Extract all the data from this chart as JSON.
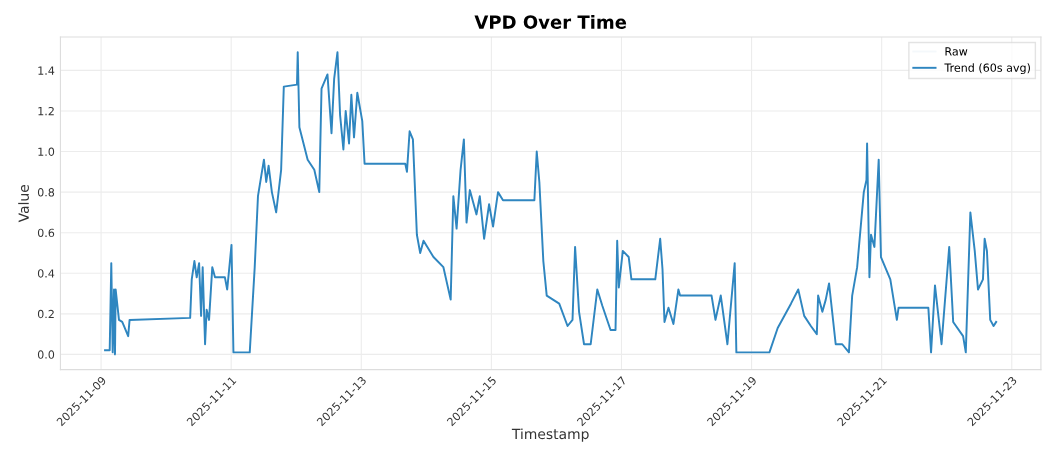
{
  "chart_data": {
    "type": "line",
    "title": "VPD Over Time",
    "xlabel": "Timestamp",
    "ylabel": "Value",
    "xlim": [
      "2025-11-08T09:00",
      "2025-11-23T10:45"
    ],
    "ylim": [
      -0.075,
      1.565
    ],
    "xticks": [
      "2025-11-09",
      "2025-11-11",
      "2025-11-13",
      "2025-11-15",
      "2025-11-17",
      "2025-11-19",
      "2025-11-21",
      "2025-11-23"
    ],
    "yticks": [
      {
        "value": 0,
        "label": "0.0"
      },
      {
        "value": 0.2,
        "label": "0.2"
      },
      {
        "value": 0.4,
        "label": "0.4"
      },
      {
        "value": 0.6,
        "label": "0.6"
      },
      {
        "value": 0.8,
        "label": "0.8"
      },
      {
        "value": 1.0,
        "label": "1.0"
      },
      {
        "value": 1.2,
        "label": "1.2"
      },
      {
        "value": 1.4,
        "label": "1.4"
      }
    ],
    "grid": true,
    "legend": "top right",
    "marker": "none",
    "line_style": "solid",
    "series": [
      {
        "name": "Raw",
        "color": "#f4f8fb"
      },
      {
        "name": "Trend (60s avg)",
        "color": "#2f86c0",
        "x": [
          "2025-11-09T01:28",
          "2025-11-09T03:11",
          "2025-11-09T03:46",
          "2025-11-09T04:17",
          "2025-11-09T04:46",
          "2025-11-09T05:08",
          "2025-11-09T05:23",
          "2025-11-09T06:36",
          "2025-11-09T07:48",
          "2025-11-09T08:26",
          "2025-11-09T10:00",
          "2025-11-09T10:31",
          "2025-11-10T08:52",
          "2025-11-10T09:27",
          "2025-11-10T10:26",
          "2025-11-10T11:17",
          "2025-11-10T12:10",
          "2025-11-10T12:54",
          "2025-11-10T13:29",
          "2025-11-10T14:22",
          "2025-11-10T14:57",
          "2025-11-10T15:50",
          "2025-11-10T17:02",
          "2025-11-10T18:02",
          "2025-11-10T21:41",
          "2025-11-10T22:32",
          "2025-11-11T00:07",
          "2025-11-11T00:50",
          "2025-11-11T06:51",
          "2025-11-11T08:41",
          "2025-11-11T09:53",
          "2025-11-11T11:06",
          "2025-11-11T12:05",
          "2025-11-11T12:56",
          "2025-11-11T13:49",
          "2025-11-11T15:01",
          "2025-11-11T16:36",
          "2025-11-11T18:26",
          "2025-11-11T19:25",
          "2025-11-12T00:17",
          "2025-11-12T00:33",
          "2025-11-12T01:10",
          "2025-11-12T04:13",
          "2025-11-12T06:40",
          "2025-11-12T08:30",
          "2025-11-12T09:20",
          "2025-11-12T11:32",
          "2025-11-12T13:01",
          "2025-11-12T14:00",
          "2025-11-12T15:13",
          "2025-11-12T16:11",
          "2025-11-12T17:24",
          "2025-11-12T18:15",
          "2025-11-12T19:29",
          "2025-11-12T20:20",
          "2025-11-12T21:19",
          "2025-11-12T22:32",
          "2025-11-13T00:22",
          "2025-11-13T01:13",
          "2025-11-13T16:14",
          "2025-11-13T16:51",
          "2025-11-13T17:50",
          "2025-11-13T19:03",
          "2025-11-13T20:31",
          "2025-11-13T21:44",
          "2025-11-13T22:58",
          "2025-11-14T02:38",
          "2025-11-14T06:18",
          "2025-11-14T08:59",
          "2025-11-14T09:58",
          "2025-11-14T11:10",
          "2025-11-14T12:38",
          "2025-11-14T13:51",
          "2025-11-14T14:50",
          "2025-11-14T16:03",
          "2025-11-14T18:30",
          "2025-11-14T19:43",
          "2025-11-14T21:19",
          "2025-11-14T23:09",
          "2025-11-15T00:37",
          "2025-11-15T02:27",
          "2025-11-15T04:17",
          "2025-11-15T15:52",
          "2025-11-15T16:44",
          "2025-11-15T17:42",
          "2025-11-15T19:10",
          "2025-11-15T20:25",
          "2025-11-16T01:02",
          "2025-11-16T04:06",
          "2025-11-16T05:56",
          "2025-11-16T06:53",
          "2025-11-16T08:21",
          "2025-11-16T10:11",
          "2025-11-16T12:38",
          "2025-11-16T15:05",
          "2025-11-16T16:56",
          "2025-11-16T19:58",
          "2025-11-16T21:48",
          "2025-11-16T22:25",
          "2025-11-16T23:01",
          "2025-11-17T00:29",
          "2025-11-17T02:40",
          "2025-11-17T03:40",
          "2025-11-17T12:28",
          "2025-11-17T14:17",
          "2025-11-17T15:08",
          "2025-11-17T15:52",
          "2025-11-17T17:20",
          "2025-11-17T19:10",
          "2025-11-17T21:00",
          "2025-11-17T21:37",
          "2025-11-18T09:14",
          "2025-11-18T10:41",
          "2025-11-18T12:38",
          "2025-11-18T15:05",
          "2025-11-18T17:46",
          "2025-11-18T18:23",
          "2025-11-19T06:35",
          "2025-11-19T09:38",
          "2025-11-19T14:32",
          "2025-11-19T17:13",
          "2025-11-19T19:25",
          "2025-11-19T21:52",
          "2025-11-20T00:04",
          "2025-11-20T00:33",
          "2025-11-20T02:07",
          "2025-11-20T03:22",
          "2025-11-20T04:35",
          "2025-11-20T07:02",
          "2025-11-20T09:27",
          "2025-11-20T11:55",
          "2025-11-20T13:07",
          "2025-11-20T14:57",
          "2025-11-20T17:24",
          "2025-11-20T18:23",
          "2025-11-20T18:37",
          "2025-11-20T19:29",
          "2025-11-20T20:04",
          "2025-11-20T21:19",
          "2025-11-20T22:54",
          "2025-11-20T23:44",
          "2025-11-21T03:11",
          "2025-11-21T05:36",
          "2025-11-21T06:14",
          "2025-11-21T17:13",
          "2025-11-21T18:13",
          "2025-11-21T19:40",
          "2025-11-21T22:05",
          "2025-11-22T00:55",
          "2025-11-22T02:23",
          "2025-11-22T06:02",
          "2025-11-22T07:02",
          "2025-11-22T08:43",
          "2025-11-22T10:20",
          "2025-11-22T11:32",
          "2025-11-22T13:22",
          "2025-11-22T13:59",
          "2025-11-22T14:50",
          "2025-11-22T16:03",
          "2025-11-22T17:17",
          "2025-11-22T18:14"
        ],
        "values": [
          0.02,
          0.02,
          0.45,
          0.01,
          0.32,
          0.0,
          0.32,
          0.17,
          0.16,
          0.14,
          0.09,
          0.17,
          0.18,
          0.37,
          0.46,
          0.38,
          0.45,
          0.19,
          0.43,
          0.05,
          0.22,
          0.17,
          0.43,
          0.38,
          0.38,
          0.32,
          0.54,
          0.01,
          0.01,
          0.43,
          0.78,
          0.88,
          0.96,
          0.85,
          0.93,
          0.8,
          0.7,
          0.91,
          1.32,
          1.33,
          1.49,
          1.12,
          0.96,
          0.91,
          0.8,
          1.31,
          1.38,
          1.09,
          1.36,
          1.49,
          1.18,
          1.01,
          1.2,
          1.04,
          1.28,
          1.07,
          1.29,
          1.15,
          0.94,
          0.94,
          0.9,
          1.1,
          1.06,
          0.59,
          0.5,
          0.56,
          0.48,
          0.43,
          0.27,
          0.78,
          0.62,
          0.91,
          1.06,
          0.65,
          0.81,
          0.69,
          0.78,
          0.57,
          0.74,
          0.63,
          0.8,
          0.76,
          0.76,
          1.0,
          0.85,
          0.46,
          0.29,
          0.25,
          0.14,
          0.17,
          0.53,
          0.21,
          0.05,
          0.05,
          0.32,
          0.24,
          0.12,
          0.12,
          0.56,
          0.33,
          0.51,
          0.48,
          0.37,
          0.37,
          0.57,
          0.42,
          0.16,
          0.23,
          0.15,
          0.32,
          0.29,
          0.29,
          0.17,
          0.29,
          0.05,
          0.45,
          0.01,
          0.01,
          0.13,
          0.25,
          0.32,
          0.19,
          0.14,
          0.1,
          0.29,
          0.21,
          0.27,
          0.35,
          0.05,
          0.05,
          0.01,
          0.29,
          0.43,
          0.8,
          0.86,
          1.04,
          0.38,
          0.59,
          0.53,
          0.96,
          0.48,
          0.37,
          0.17,
          0.23,
          0.23,
          0.01,
          0.34,
          0.05,
          0.53,
          0.16,
          0.09,
          0.01,
          0.7,
          0.51,
          0.32,
          0.37,
          0.57,
          0.51,
          0.17,
          0.14,
          0.16
        ]
      }
    ]
  }
}
